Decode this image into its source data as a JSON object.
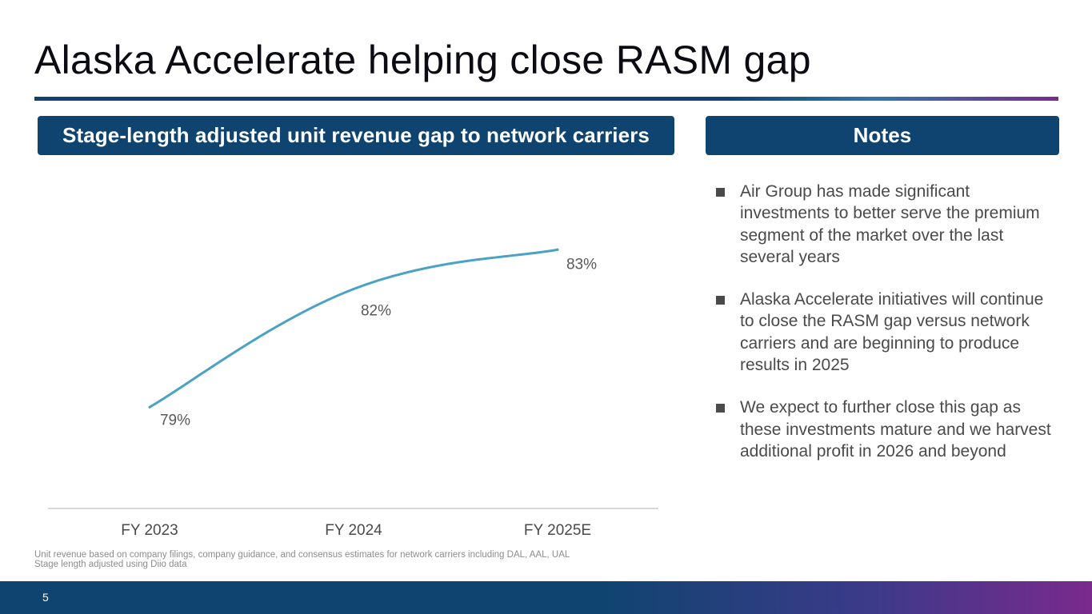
{
  "slide": {
    "title": "Alaska Accelerate helping close RASM gap",
    "page_number": "5"
  },
  "chart_panel": {
    "header": "Stage-length adjusted unit revenue gap to network carriers"
  },
  "notes_panel": {
    "header": "Notes",
    "items": [
      "Air Group has made significant investments to better serve the premium segment of the market over the last several years",
      "Alaska Accelerate initiatives will continue to close the RASM gap versus network carriers and are beginning to produce results in 2025",
      "We expect to further close this gap as these investments mature and we harvest additional profit in 2026 and beyond"
    ]
  },
  "footnote": {
    "line1": "Unit revenue based on company filings, company guidance, and consensus estimates for network carriers including  DAL, AAL, UAL",
    "line2": "Stage length adjusted using Diio data"
  },
  "colors": {
    "brand_navy": "#0f4470",
    "line": "#4aa3c3",
    "accent_purple": "#7a2a8c"
  },
  "chart_data": {
    "type": "line",
    "title": "Stage-length adjusted unit revenue gap to network carriers",
    "categories": [
      "FY 2023",
      "FY 2024",
      "FY 2025E"
    ],
    "series": [
      {
        "name": "Unit revenue gap",
        "values": [
          79,
          82,
          83
        ]
      }
    ],
    "data_labels": [
      "79%",
      "82%",
      "83%"
    ],
    "xlabel": "",
    "ylabel": "",
    "grid": false,
    "legend": "none"
  }
}
